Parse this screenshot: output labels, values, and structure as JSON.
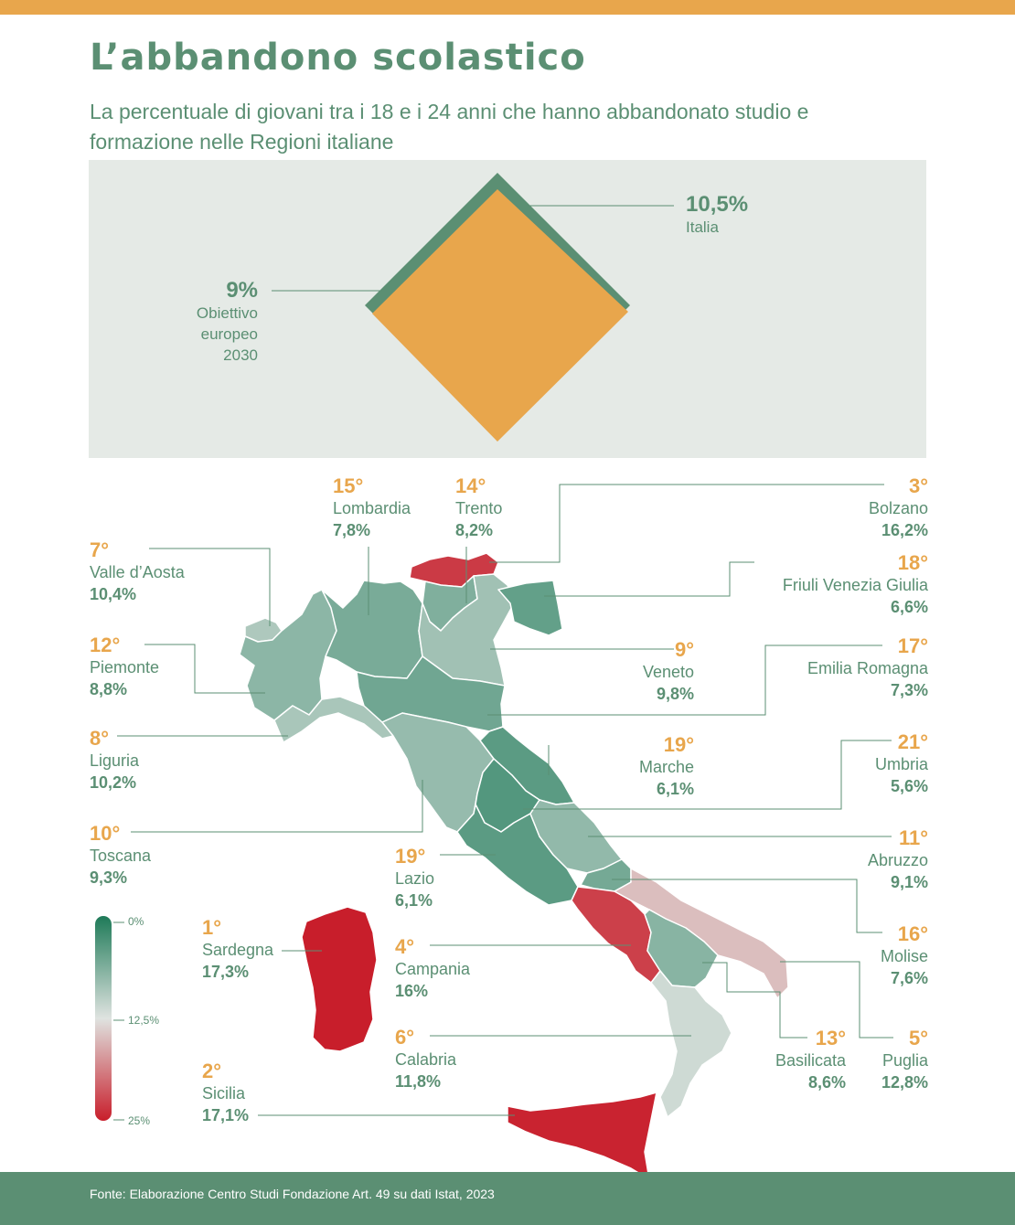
{
  "header": {
    "title": "L’abbandono scolastico",
    "subtitle": "La percentuale di giovani tra i 18 e i 24 anni che hanno abbandonato studio e formazione nelle Regioni italiane"
  },
  "colors": {
    "accent": "#e8a64c",
    "green": "#5b8f73",
    "dark_green": "#1e7a58",
    "red": "#c81e2b",
    "panel": "#e5eae6"
  },
  "summary": {
    "italia_value": "10,5%",
    "italia_label": "Italia",
    "target_value": "9%",
    "target_label_1": "Obiettivo",
    "target_label_2": "europeo",
    "target_label_3": "2030"
  },
  "legend": {
    "min": "0%",
    "mid": "12,5%",
    "max": "25%"
  },
  "chart_data": {
    "type": "choropleth",
    "unit": "%",
    "national_value": 10.5,
    "eu_target_2030": 9,
    "color_scale": {
      "min": 0,
      "mid": 12.5,
      "max": 25,
      "min_color": "#1e7a58",
      "mid_color": "#dfe3e0",
      "max_color": "#c81e2b"
    },
    "regions": [
      {
        "rank": "15°",
        "name": "Lombardia",
        "value_label": "7,8%",
        "value": 7.8
      },
      {
        "rank": "14°",
        "name": "Trento",
        "value_label": "8,2%",
        "value": 8.2
      },
      {
        "rank": "3°",
        "name": "Bolzano",
        "value_label": "16,2%",
        "value": 16.2
      },
      {
        "rank": "7°",
        "name": "Valle d’Aosta",
        "value_label": "10,4%",
        "value": 10.4
      },
      {
        "rank": "18°",
        "name": "Friuli Venezia Giulia",
        "value_label": "6,6%",
        "value": 6.6
      },
      {
        "rank": "12°",
        "name": "Piemonte",
        "value_label": "8,8%",
        "value": 8.8
      },
      {
        "rank": "9°",
        "name": "Veneto",
        "value_label": "9,8%",
        "value": 9.8
      },
      {
        "rank": "17°",
        "name": "Emilia Romagna",
        "value_label": "7,3%",
        "value": 7.3
      },
      {
        "rank": "8°",
        "name": "Liguria",
        "value_label": "10,2%",
        "value": 10.2
      },
      {
        "rank": "19°",
        "name": "Marche",
        "value_label": "6,1%",
        "value": 6.1
      },
      {
        "rank": "21°",
        "name": "Umbria",
        "value_label": "5,6%",
        "value": 5.6
      },
      {
        "rank": "10°",
        "name": "Toscana",
        "value_label": "9,3%",
        "value": 9.3
      },
      {
        "rank": "11°",
        "name": "Abruzzo",
        "value_label": "9,1%",
        "value": 9.1
      },
      {
        "rank": "19°",
        "name": "Lazio",
        "value_label": "6,1%",
        "value": 6.1
      },
      {
        "rank": "16°",
        "name": "Molise",
        "value_label": "7,6%",
        "value": 7.6
      },
      {
        "rank": "1°",
        "name": "Sardegna",
        "value_label": "17,3%",
        "value": 17.3
      },
      {
        "rank": "4°",
        "name": "Campania",
        "value_label": "16%",
        "value": 16
      },
      {
        "rank": "6°",
        "name": "Calabria",
        "value_label": "11,8%",
        "value": 11.8
      },
      {
        "rank": "13°",
        "name": "Basilicata",
        "value_label": "8,6%",
        "value": 8.6
      },
      {
        "rank": "5°",
        "name": "Puglia",
        "value_label": "12,8%",
        "value": 12.8
      },
      {
        "rank": "2°",
        "name": "Sicilia",
        "value_label": "17,1%",
        "value": 17.1
      }
    ]
  },
  "footer": {
    "source": "Fonte: Elaborazione Centro Studi Fondazione Art. 49 su dati Istat, 2023"
  }
}
